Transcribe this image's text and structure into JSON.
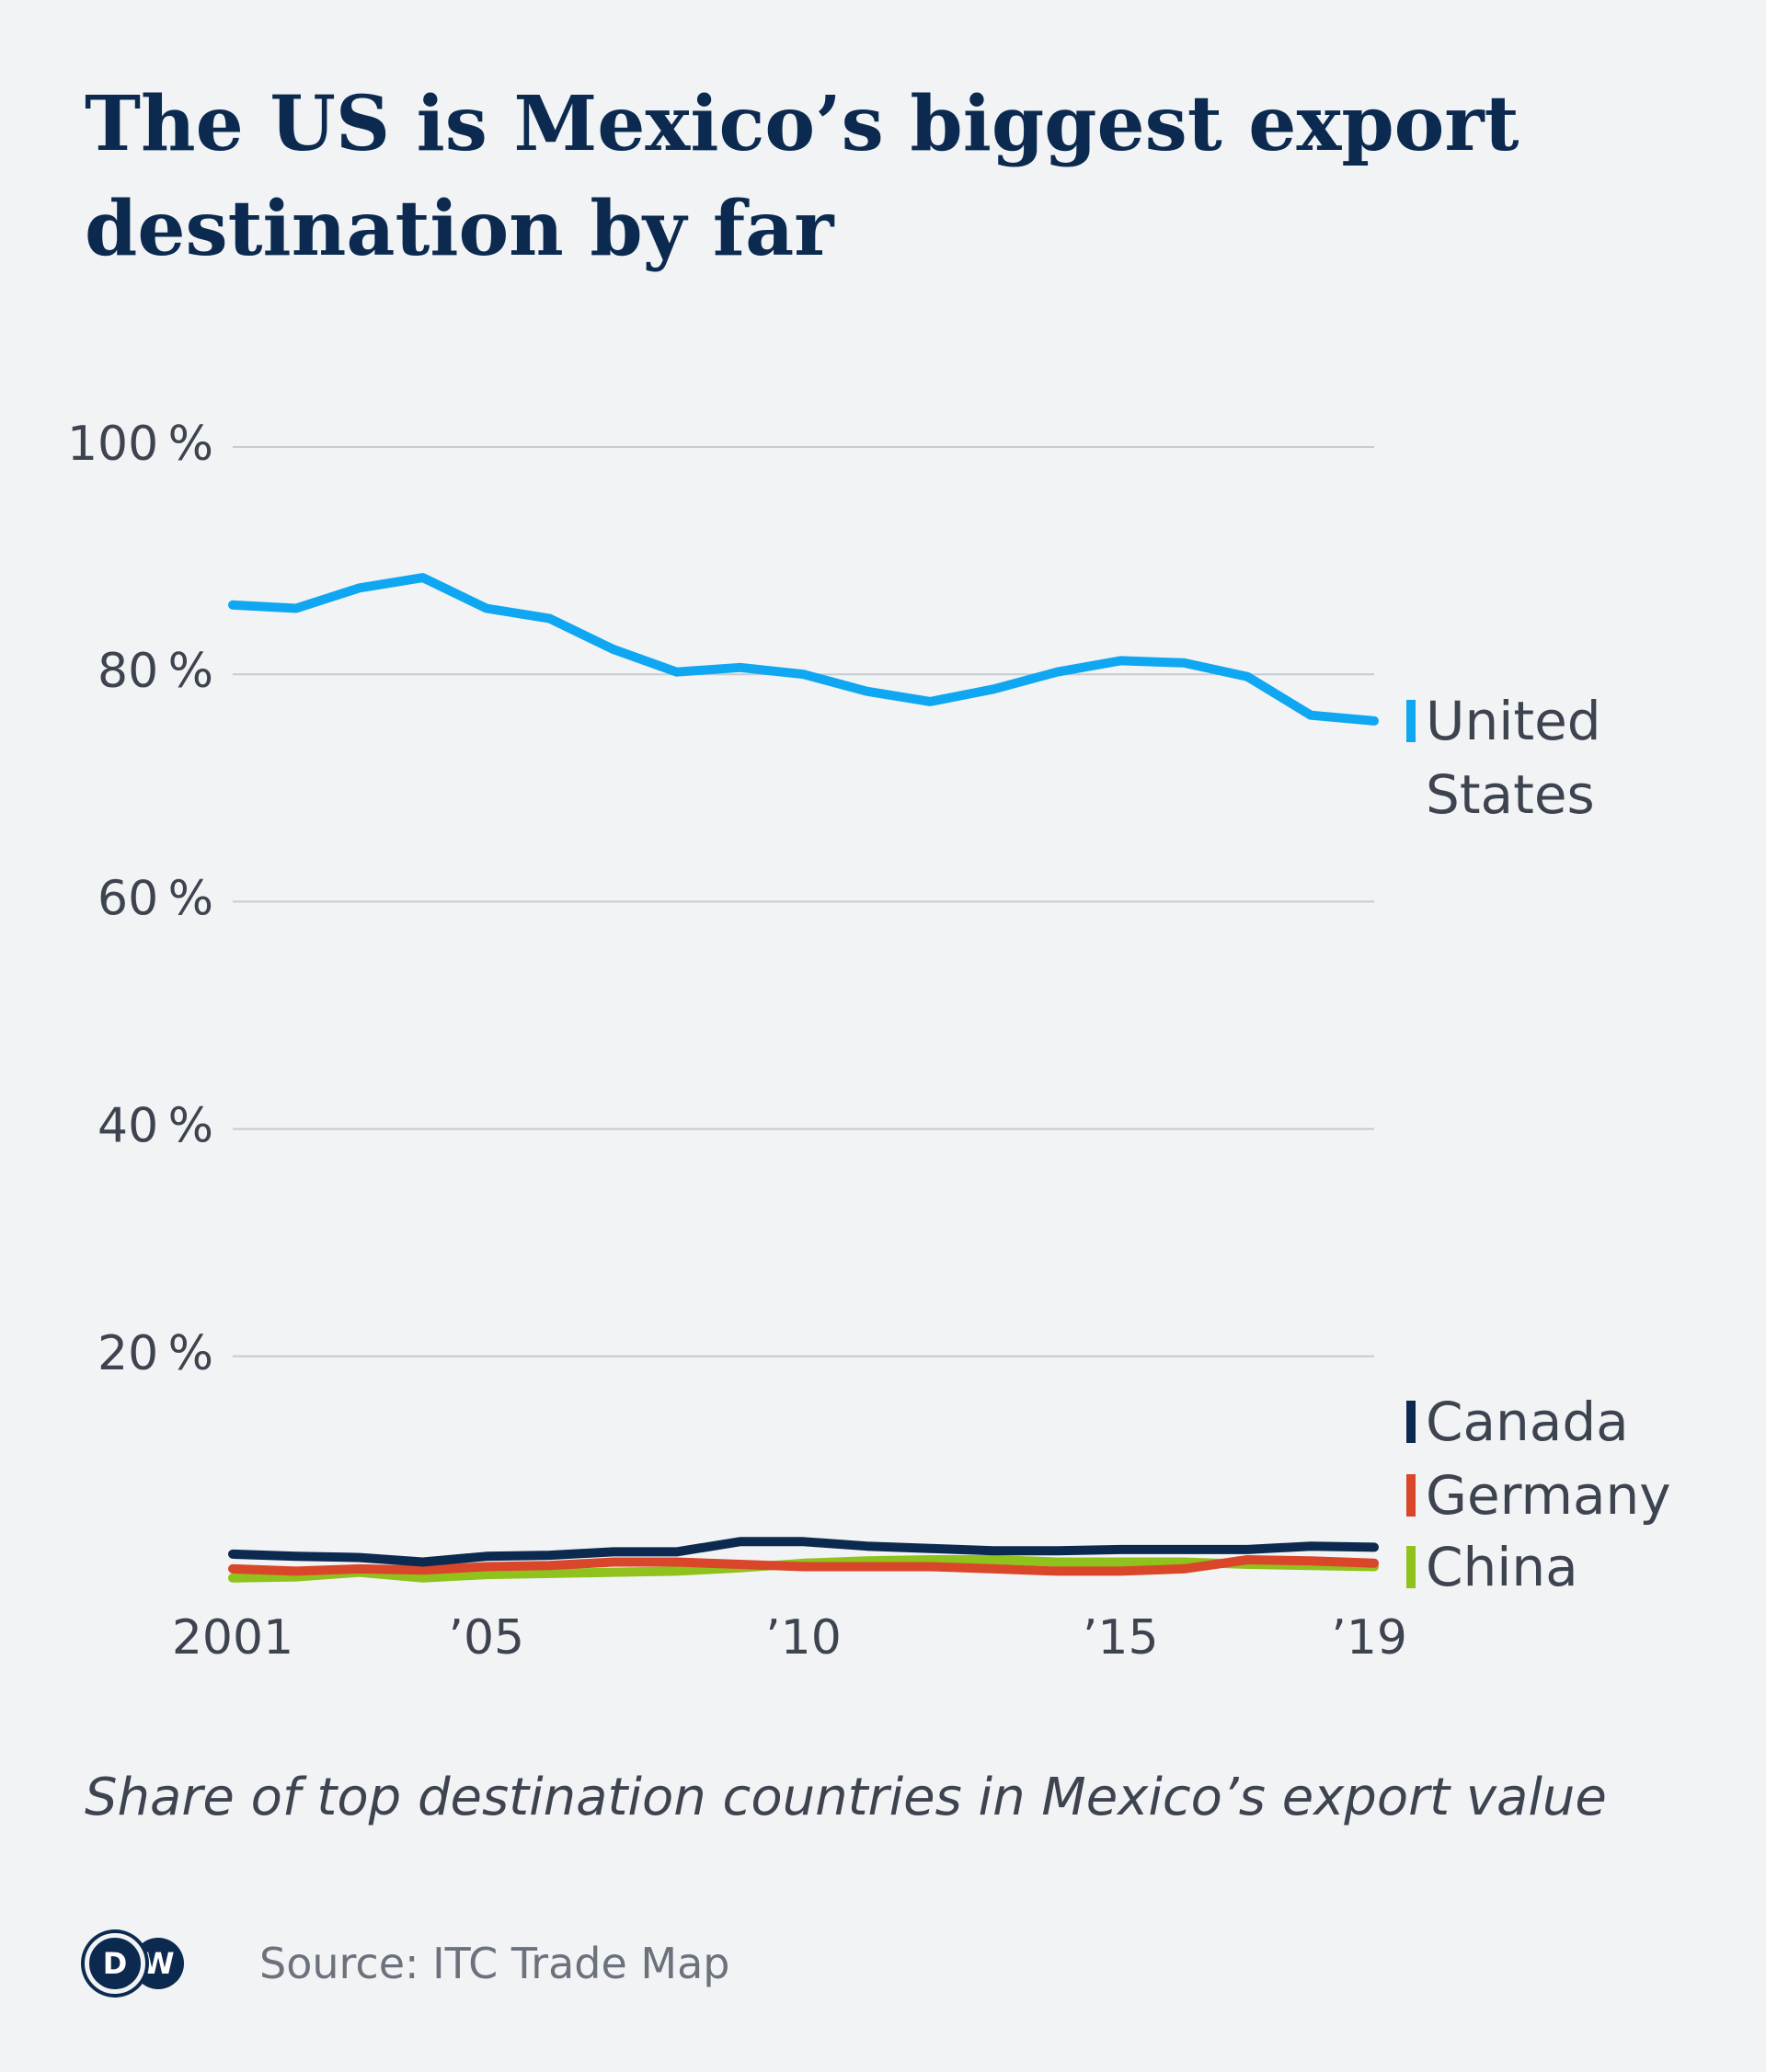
{
  "title": "The US is Mexico’s biggest export destination by far",
  "subtitle": "Share of top destination countries in Mexico’s export value",
  "source": "Source: ITC Trade Map",
  "logo": {
    "d": "D",
    "w": "W",
    "brand": "DW"
  },
  "chart_data": {
    "type": "line",
    "x": [
      2001,
      2002,
      2003,
      2004,
      2005,
      2006,
      2007,
      2008,
      2009,
      2010,
      2011,
      2012,
      2013,
      2014,
      2015,
      2016,
      2017,
      2018,
      2019
    ],
    "x_ticks": [
      {
        "value": 2001,
        "label": "2001"
      },
      {
        "value": 2005,
        "label": "’05"
      },
      {
        "value": 2010,
        "label": "’10"
      },
      {
        "value": 2015,
        "label": "’15"
      },
      {
        "value": 2019,
        "label": "’19"
      }
    ],
    "y_ticks": [
      {
        "value": 20,
        "label": "20 %"
      },
      {
        "value": 40,
        "label": "40 %"
      },
      {
        "value": 60,
        "label": "60 %"
      },
      {
        "value": 80,
        "label": "80 %"
      },
      {
        "value": 100,
        "label": "100 %"
      }
    ],
    "ylim": [
      0,
      100
    ],
    "xlim": [
      2001,
      2019
    ],
    "grid": true,
    "legend_placement": "right, at series ends",
    "series": [
      {
        "name": "China",
        "color": "#8fc21c",
        "legend_lines": [
          "China"
        ],
        "values": [
          0.5,
          0.6,
          1.0,
          0.5,
          0.8,
          0.9,
          1.0,
          1.1,
          1.4,
          1.8,
          2.0,
          2.1,
          2.1,
          1.9,
          1.9,
          1.9,
          1.7,
          1.6,
          1.5
        ]
      },
      {
        "name": "Germany",
        "color": "#d9462a",
        "legend_lines": [
          "Germany"
        ],
        "values": [
          1.3,
          1.1,
          1.3,
          1.2,
          1.5,
          1.6,
          1.9,
          1.9,
          1.7,
          1.5,
          1.5,
          1.5,
          1.3,
          1.1,
          1.1,
          1.3,
          2.1,
          2.0,
          1.8
        ]
      },
      {
        "name": "Canada",
        "color": "#0c2a4f",
        "legend_lines": [
          "Canada"
        ],
        "values": [
          2.6,
          2.4,
          2.3,
          1.9,
          2.4,
          2.5,
          2.8,
          2.8,
          3.7,
          3.7,
          3.3,
          3.1,
          2.9,
          2.9,
          3.0,
          3.0,
          3.0,
          3.3,
          3.2
        ]
      },
      {
        "name": "United States",
        "color": "#0fa7f2",
        "legend_lines": [
          "United",
          "States"
        ],
        "values": [
          86.1,
          85.8,
          87.6,
          88.5,
          85.8,
          84.9,
          82.2,
          80.2,
          80.6,
          80.0,
          78.5,
          77.6,
          78.7,
          80.2,
          81.2,
          81.0,
          79.8,
          76.4,
          75.9
        ]
      }
    ]
  }
}
